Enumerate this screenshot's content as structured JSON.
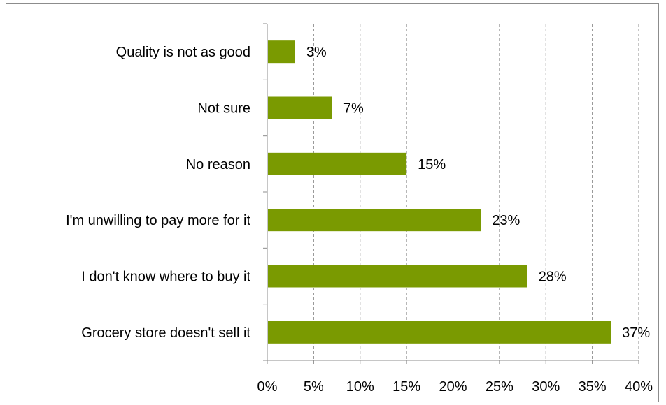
{
  "chart_data": {
    "type": "bar",
    "orientation": "horizontal",
    "categories": [
      "Grocery store doesn't sell it",
      "I don't know where to buy it",
      "I'm unwilling to pay more for it",
      "No reason",
      "Not sure",
      "Quality is not as good"
    ],
    "values": [
      37,
      28,
      23,
      15,
      7,
      3
    ],
    "value_labels": [
      "37%",
      "28%",
      "23%",
      "15%",
      "7%",
      "3%"
    ],
    "x_ticks": [
      "0%",
      "5%",
      "10%",
      "15%",
      "20%",
      "25%",
      "30%",
      "35%",
      "40%"
    ],
    "xlim": [
      0,
      40
    ],
    "unit": "%",
    "grid": "vertical dashed",
    "legend": "none",
    "title": "",
    "xlabel": "",
    "ylabel": "",
    "colors": {
      "bar": "#7a9a01",
      "grid": "#8c8c8c",
      "axis": "#8c8c8c"
    }
  }
}
